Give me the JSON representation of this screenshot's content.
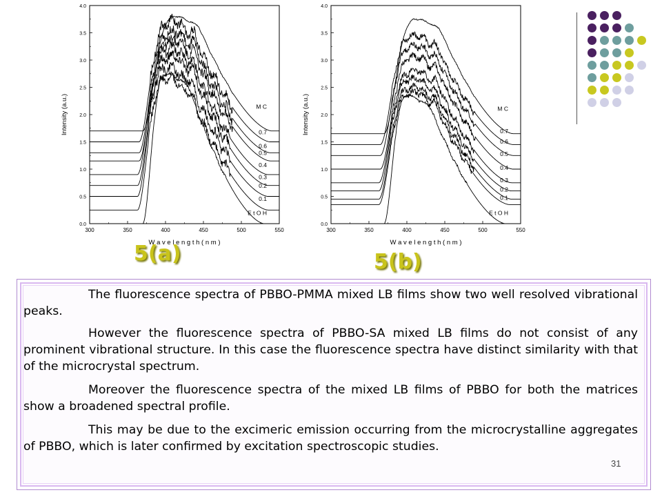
{
  "chart_data": [
    {
      "type": "line",
      "panel": "5(a)",
      "xlabel": "W a v e l e n g t h   ( n m )",
      "ylabel": "Intensity (a.u.)",
      "xlim": [
        300,
        550
      ],
      "ylim": [
        0,
        4.0
      ],
      "xticks": [
        "300",
        "350",
        "400",
        "450",
        "500",
        "550"
      ],
      "yticks": [
        "0.0",
        "0.5",
        "1.0",
        "1.5",
        "2.0",
        "2.5",
        "3.0",
        "3.5",
        "4.0"
      ],
      "series": [
        {
          "name": "E t O H",
          "baseline": 0.0,
          "height": 2.75,
          "rise": 385,
          "peak": 405,
          "fall": 470,
          "fine": 0.02,
          "label_at": 0.12
        },
        {
          "name": "0.1",
          "baseline": 0.25,
          "height": 2.4,
          "rise": 378,
          "peak": 405,
          "fall": 475,
          "fine": 0.07,
          "label_at": 0.38
        },
        {
          "name": "0.2",
          "baseline": 0.5,
          "height": 2.35,
          "rise": 378,
          "peak": 405,
          "fall": 475,
          "fine": 0.08,
          "label_at": 0.62
        },
        {
          "name": "0.3",
          "baseline": 0.7,
          "height": 2.35,
          "rise": 378,
          "peak": 408,
          "fall": 475,
          "fine": 0.08,
          "label_at": 0.78
        },
        {
          "name": "0.4",
          "baseline": 0.9,
          "height": 2.3,
          "rise": 378,
          "peak": 408,
          "fall": 475,
          "fine": 0.08,
          "label_at": 1.0
        },
        {
          "name": "0.5",
          "baseline": 1.15,
          "height": 2.2,
          "rise": 380,
          "peak": 410,
          "fall": 478,
          "fine": 0.08,
          "label_at": 1.22
        },
        {
          "name": "0.6",
          "baseline": 1.3,
          "height": 2.2,
          "rise": 380,
          "peak": 410,
          "fall": 478,
          "fine": 0.08,
          "label_at": 1.35
        },
        {
          "name": "0.7",
          "baseline": 1.5,
          "height": 2.2,
          "rise": 380,
          "peak": 410,
          "fall": 478,
          "fine": 0.08,
          "label_at": 1.6
        },
        {
          "name": "M C",
          "baseline": 1.7,
          "height": 2.1,
          "rise": 385,
          "peak": 418,
          "fall": 480,
          "fine": 0.01,
          "label_at": 2.07
        }
      ]
    },
    {
      "type": "line",
      "panel": "5(b)",
      "xlabel": "W a v e l e n g t h   ( n m )",
      "ylabel": "Intensity (a.u.)",
      "xlim": [
        300,
        550
      ],
      "ylim": [
        0,
        4.0
      ],
      "xticks": [
        "300",
        "350",
        "400",
        "450",
        "500",
        "550"
      ],
      "yticks": [
        "0.0",
        "0.5",
        "1.0",
        "1.5",
        "2.0",
        "2.5",
        "3.0",
        "3.5",
        "4.0"
      ],
      "series": [
        {
          "name": "E t O H",
          "baseline": 0.0,
          "height": 2.35,
          "rise": 385,
          "peak": 405,
          "fall": 470,
          "fine": 0.02,
          "label_at": 0.12
        },
        {
          "name": "0.1",
          "baseline": 0.35,
          "height": 2.05,
          "rise": 378,
          "peak": 410,
          "fall": 475,
          "fine": 0.05,
          "label_at": 0.4
        },
        {
          "name": "0.2",
          "baseline": 0.45,
          "height": 2.05,
          "rise": 378,
          "peak": 410,
          "fall": 478,
          "fine": 0.05,
          "label_at": 0.55
        },
        {
          "name": "0.3",
          "baseline": 0.6,
          "height": 2.05,
          "rise": 378,
          "peak": 410,
          "fall": 478,
          "fine": 0.05,
          "label_at": 0.72
        },
        {
          "name": "0.4",
          "baseline": 0.75,
          "height": 2.05,
          "rise": 378,
          "peak": 412,
          "fall": 478,
          "fine": 0.05,
          "label_at": 0.95
        },
        {
          "name": "0.5",
          "baseline": 1.0,
          "height": 2.05,
          "rise": 380,
          "peak": 412,
          "fall": 480,
          "fine": 0.05,
          "label_at": 1.2
        },
        {
          "name": "0.6",
          "baseline": 1.25,
          "height": 2.0,
          "rise": 380,
          "peak": 412,
          "fall": 480,
          "fine": 0.05,
          "label_at": 1.43
        },
        {
          "name": "0.7",
          "baseline": 1.45,
          "height": 2.0,
          "rise": 380,
          "peak": 412,
          "fall": 480,
          "fine": 0.05,
          "label_at": 1.62
        },
        {
          "name": "M C",
          "baseline": 1.65,
          "height": 2.1,
          "rise": 385,
          "peak": 418,
          "fall": 480,
          "fine": 0.01,
          "label_at": 2.03
        }
      ]
    }
  ],
  "figure_labels": {
    "a": "5(a)",
    "b": "5(b)"
  },
  "text": {
    "p1": "The fluorescence spectra of PBBO-PMMA mixed LB films show two well resolved vibrational peaks.",
    "p2": "However the fluorescence spectra of PBBO-SA mixed LB films do not consist of any prominent vibrational structure. In this case the fluorescence spectra have distinct similarity with that of the microcrystal spectrum.",
    "p3": "Moreover the fluorescence spectra of the mixed LB films of PBBO for both the matrices show a broadened spectral profile.",
    "p4": "This may be due to the excimeric emission occurring from the microcrystalline aggregates of PBBO, which is later confirmed by excitation spectroscopic studies."
  },
  "page_number": "31",
  "colors": {
    "accent": "#c9c41c",
    "dot_purple": "#4a2060",
    "dot_teal": "#6e9e9e",
    "dot_yellow": "#c8c820",
    "dot_lavender": "#d0d0e6",
    "border": "#b08ad0"
  },
  "decoration": [
    [
      "dot_purple",
      "dot_purple",
      "dot_purple"
    ],
    [
      "dot_purple",
      "dot_purple",
      "dot_purple",
      "dot_teal"
    ],
    [
      "dot_purple",
      "dot_teal",
      "dot_teal",
      "dot_teal",
      "dot_yellow"
    ],
    [
      "dot_purple",
      "dot_teal",
      "dot_teal",
      "dot_yellow"
    ],
    [
      "dot_teal",
      "dot_teal",
      "dot_yellow",
      "dot_yellow",
      "dot_lavender"
    ],
    [
      "dot_teal",
      "dot_yellow",
      "dot_yellow",
      "dot_lavender"
    ],
    [
      "dot_yellow",
      "dot_yellow",
      "dot_lavender",
      "dot_lavender"
    ],
    [
      "dot_lavender",
      "dot_lavender",
      "dot_lavender"
    ]
  ]
}
